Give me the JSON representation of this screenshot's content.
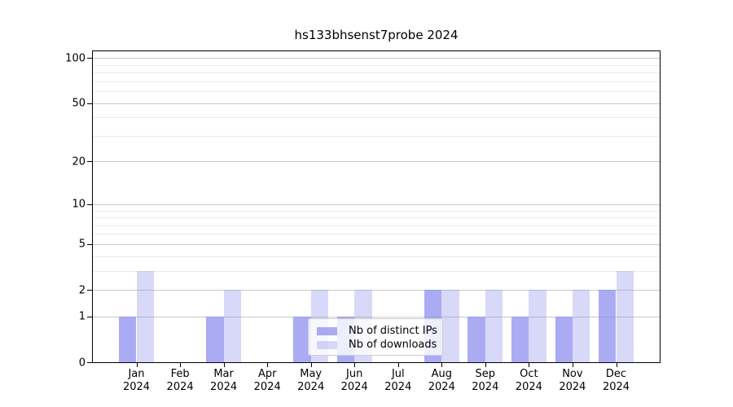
{
  "title": "hs133bhsenst7probe 2024",
  "chart_data": {
    "type": "bar",
    "categories": [
      "Jan",
      "Feb",
      "Mar",
      "Apr",
      "May",
      "Jun",
      "Jul",
      "Aug",
      "Sep",
      "Oct",
      "Nov",
      "Dec"
    ],
    "category_year": "2024",
    "series": [
      {
        "name": "Nb of distinct IPs",
        "color": "#8888ee",
        "alpha": 0.7,
        "values": [
          1,
          0,
          1,
          0,
          1,
          1,
          0,
          2,
          1,
          1,
          1,
          2
        ]
      },
      {
        "name": "Nb of downloads",
        "color": "#8888ee",
        "alpha": 0.33,
        "values": [
          3,
          0,
          2,
          0,
          2,
          2,
          0,
          2,
          2,
          2,
          2,
          3
        ]
      }
    ],
    "title": "hs133bhsenst7probe 2024",
    "xlabel": "",
    "ylabel": "",
    "yscale": "log1p",
    "ylim": [
      0,
      112
    ],
    "y_major_ticks": [
      0,
      1,
      2,
      5,
      10,
      20,
      50,
      100
    ],
    "y_minor_ticks": [
      3,
      4,
      6,
      7,
      8,
      9,
      30,
      40,
      60,
      70,
      80,
      90
    ],
    "grid": true,
    "legend_position": "lower center"
  },
  "colors": {
    "background": "#ffffff",
    "spine": "#000000",
    "grid_major": "#c9c9c9",
    "grid_minor": "#eaeaea",
    "legend_border": "#cccccc",
    "text": "#000000"
  }
}
